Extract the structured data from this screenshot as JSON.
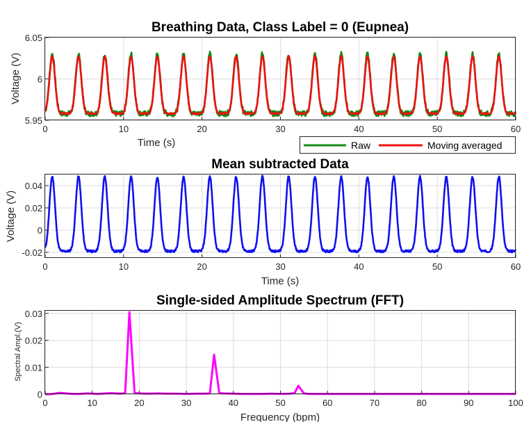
{
  "chart_data": [
    {
      "type": "line",
      "title": "Breathing Data, Class Label = 0 (Eupnea)",
      "xlabel": "Time (s)",
      "ylabel": "Voltage (V)",
      "xlim": [
        0,
        60
      ],
      "ylim": [
        5.95,
        6.05
      ],
      "xticks": [
        "0",
        "10",
        "20",
        "30",
        "40",
        "50",
        "60"
      ],
      "yticks": [
        "5.95",
        "6",
        "6.05"
      ],
      "grid": true,
      "legend_position": "bottom-right-outside",
      "signal": {
        "period_s": 3.35,
        "first_peak_s": 0.9,
        "baseline_V": 5.958,
        "peak_V": 6.03,
        "duration_s": 60
      },
      "series": [
        {
          "name": "Raw",
          "color": "#138a13"
        },
        {
          "name": "Moving averaged",
          "color": "#ee1111"
        }
      ]
    },
    {
      "type": "line",
      "title": "Mean subtracted Data",
      "xlabel": "Time (s)",
      "ylabel": "Voltage (V)",
      "xlim": [
        0,
        60
      ],
      "ylim": [
        -0.025,
        0.05
      ],
      "xticks": [
        "0",
        "10",
        "20",
        "30",
        "40",
        "50",
        "60"
      ],
      "yticks": [
        "-0.02",
        "0",
        "0.02",
        "0.04"
      ],
      "grid": true,
      "signal": {
        "period_s": 3.35,
        "first_peak_s": 0.9,
        "baseline_V": -0.019,
        "peak_V": 0.048,
        "duration_s": 60
      },
      "series": [
        {
          "color": "#1010ee"
        }
      ]
    },
    {
      "type": "line",
      "title": "Single-sided Amplitude Spectrum (FFT)",
      "xlabel": "Frequency (bpm)",
      "ylabel": "Spectral Ampl.(V)",
      "xlim": [
        0,
        100
      ],
      "ylim": [
        0,
        0.031
      ],
      "xticks": [
        "0",
        "10",
        "20",
        "30",
        "40",
        "50",
        "60",
        "70",
        "80",
        "90",
        "100"
      ],
      "yticks": [
        "0",
        "0.01",
        "0.02",
        "0.03"
      ],
      "grid": true,
      "series": [
        {
          "color": "#ff00ff",
          "x": [
            0,
            1,
            2,
            3,
            4,
            5,
            6,
            7,
            8,
            9,
            10,
            11,
            12,
            13,
            14,
            15,
            16,
            17,
            17.9,
            19,
            20,
            22,
            24,
            26,
            28,
            30,
            32,
            34,
            35,
            35.9,
            37,
            38,
            40,
            42,
            44,
            46,
            48,
            50,
            52,
            53,
            53.8,
            55,
            56,
            58,
            60,
            65,
            70,
            75,
            80,
            85,
            90,
            95,
            100
          ],
          "y": [
            0,
            0,
            0.0002,
            0.0005,
            0.0004,
            0.0002,
            0.0001,
            0.0001,
            0.0002,
            0.0003,
            0.0002,
            0.0001,
            0.0002,
            0.0003,
            0.0004,
            0.0003,
            0.0002,
            0.0004,
            0.0305,
            0.0005,
            0.0003,
            0.0002,
            0.0003,
            0.0002,
            0.0002,
            0.0001,
            0.0002,
            0.0002,
            0.0003,
            0.0147,
            0.0004,
            0.0003,
            0.0002,
            0.0001,
            0.0001,
            0.0001,
            0.0002,
            0.0001,
            0.0002,
            0.0004,
            0.0031,
            0.0003,
            0.0001,
            0.0001,
            0.0001,
            0.0001,
            0.0001,
            0.0001,
            0.0001,
            0.0001,
            0.0001,
            0.0001,
            0.0001
          ]
        }
      ]
    }
  ]
}
